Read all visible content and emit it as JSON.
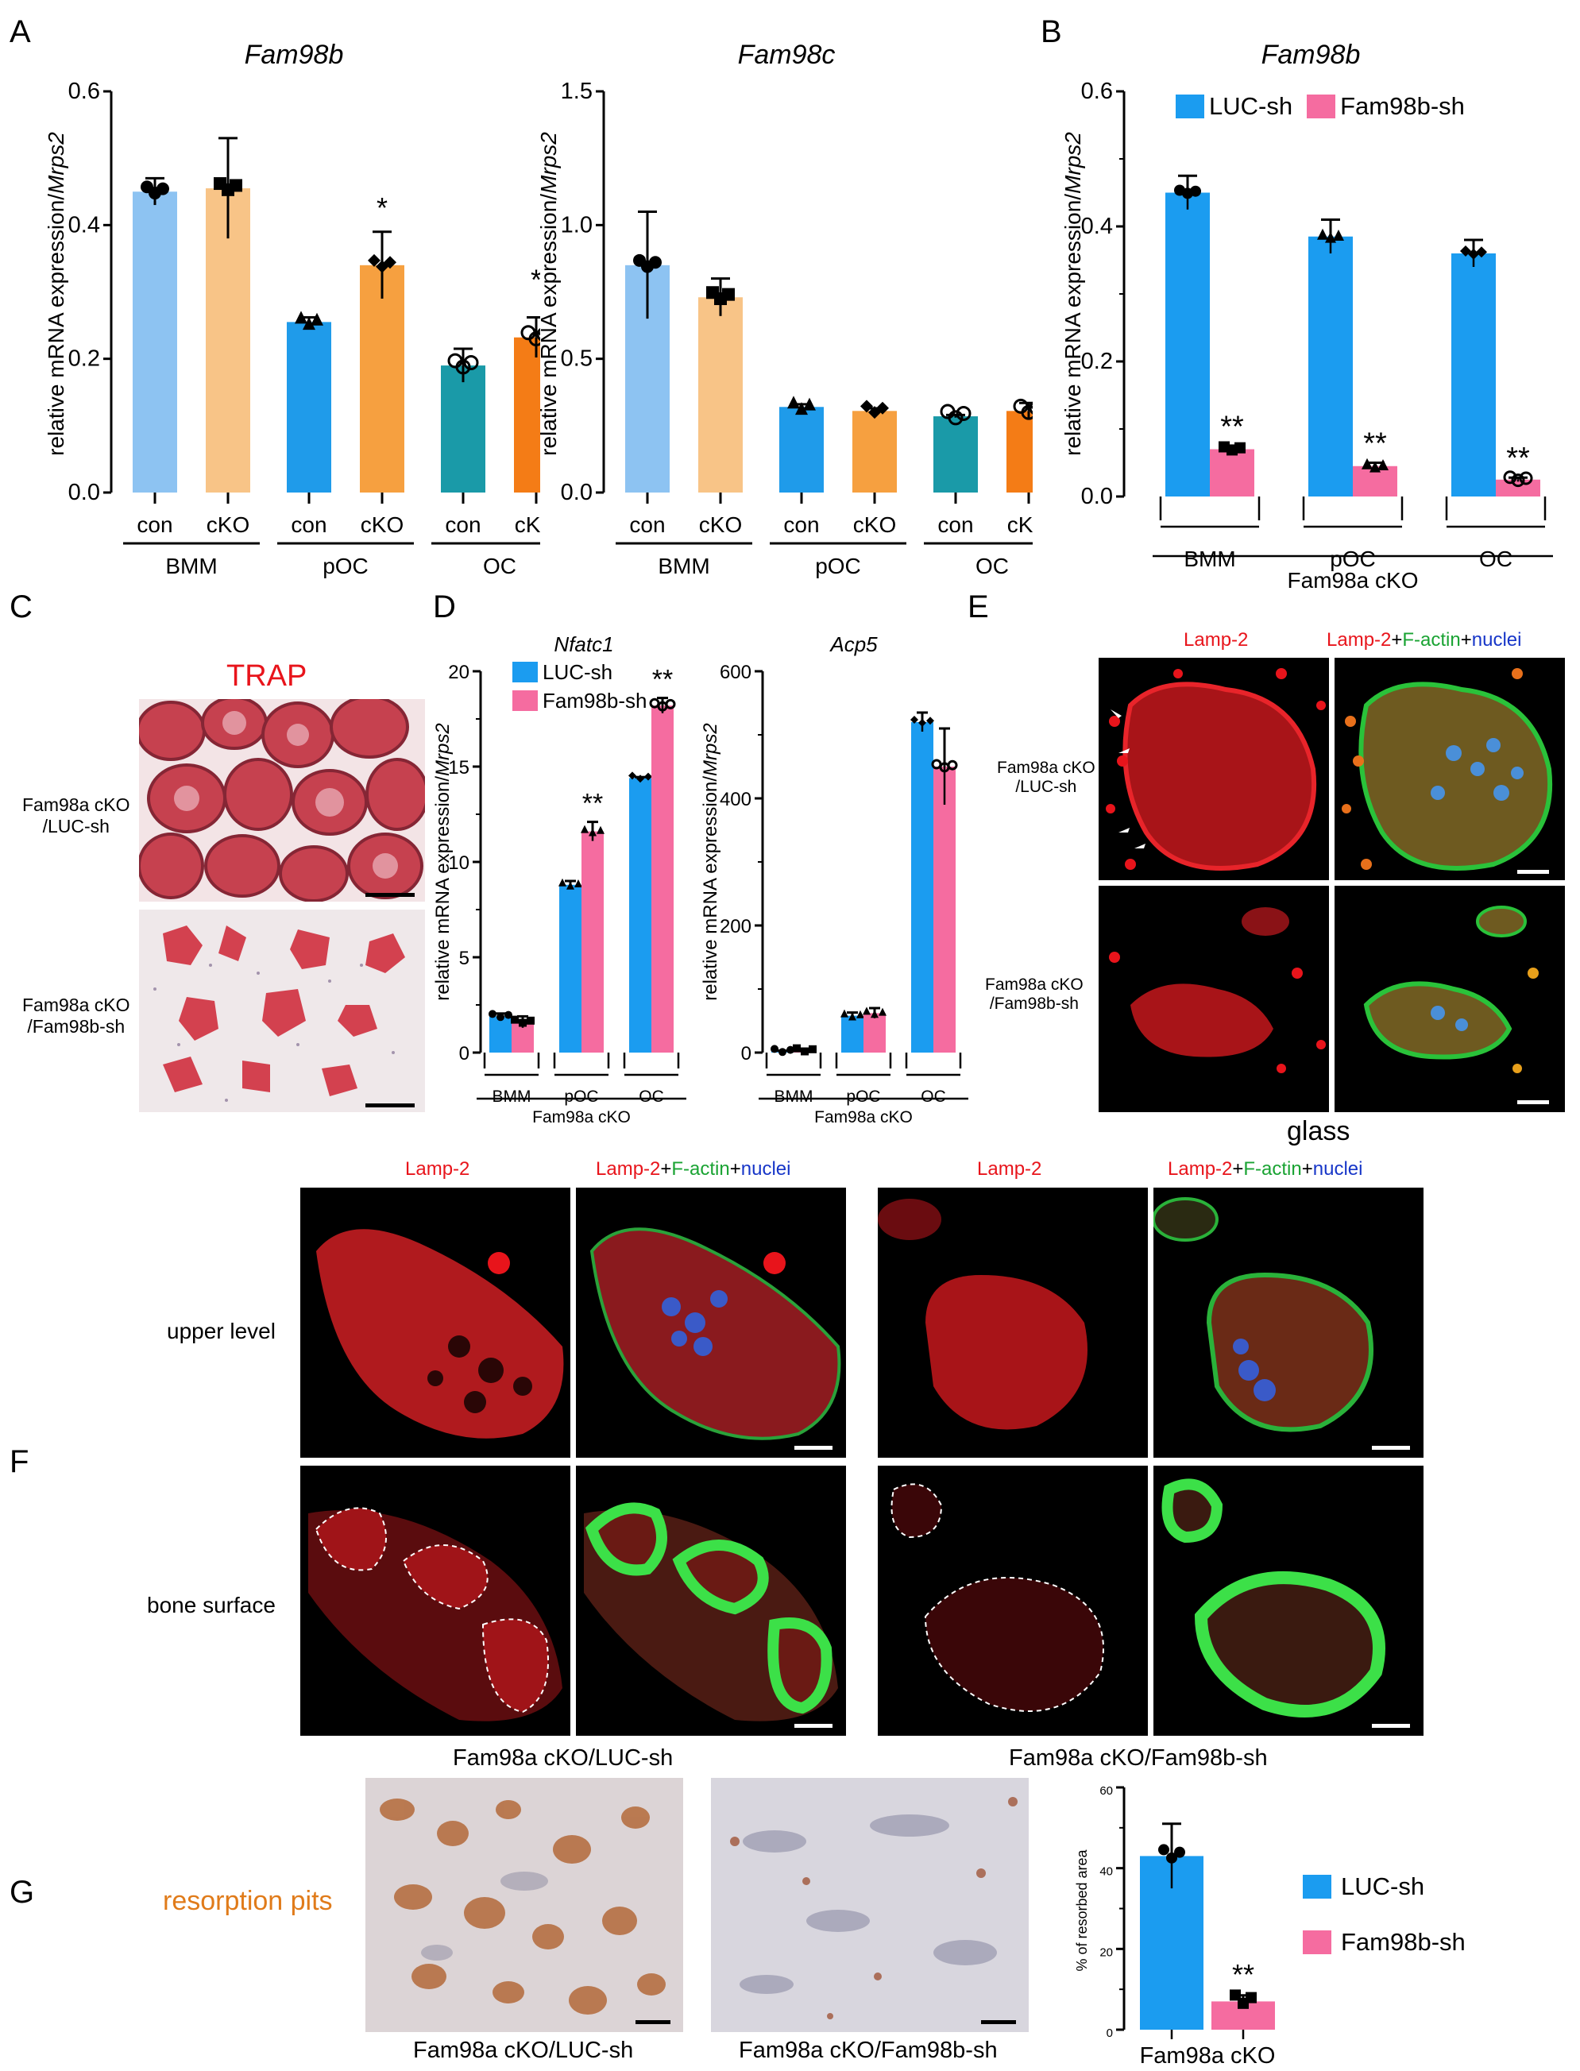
{
  "panel_letters": {
    "A": "A",
    "B": "B",
    "C": "C",
    "D": "D",
    "E": "E",
    "F": "F",
    "G": "G"
  },
  "colors": {
    "bmm_con": "#8DC3F2",
    "bmm_cko": "#F8C487",
    "poc_con": "#1F9BEA",
    "poc_cko": "#F6A040",
    "oc_con": "#1A9AA8",
    "oc_cko": "#F47C16",
    "luc": "#1B9CF0",
    "fam98b": "#F56CA0",
    "lamp": "#E8141B",
    "factin": "#1AA333",
    "nuclei": "#1736C8",
    "pits": "#E07B1A"
  },
  "chart_data": [
    {
      "id": "A1",
      "type": "bar",
      "title": "Fam98b",
      "ylabel": "relative mRNA expression/Mrps2",
      "ylim": [
        0,
        0.6
      ],
      "yticks": [
        "0.0",
        "0.2",
        "0.4",
        "0.6"
      ],
      "categories": [
        "con",
        "cKO",
        "con",
        "cKO",
        "con",
        "cKO"
      ],
      "groups": [
        "BMM",
        "pOC",
        "OC"
      ],
      "values": [
        0.45,
        0.455,
        0.255,
        0.34,
        0.19,
        0.232
      ],
      "errors": [
        0.02,
        0.075,
        0.007,
        0.05,
        0.025,
        0.03
      ],
      "annotations": [
        "",
        "",
        "",
        "*",
        "",
        "*"
      ]
    },
    {
      "id": "A2",
      "type": "bar",
      "title": "Fam98c",
      "ylabel": "relative mRNA expression/Mrps2",
      "ylim": [
        0,
        1.5
      ],
      "yticks": [
        "0.0",
        "0.5",
        "1.0",
        "1.5"
      ],
      "categories": [
        "con",
        "cKO",
        "con",
        "cKO",
        "con",
        "cKO"
      ],
      "groups": [
        "BMM",
        "pOC",
        "OC"
      ],
      "values": [
        0.85,
        0.73,
        0.32,
        0.305,
        0.285,
        0.305
      ],
      "errors": [
        0.2,
        0.07,
        0.01,
        0.01,
        0.005,
        0.03
      ],
      "annotations": [
        "",
        "",
        "",
        "",
        "",
        ""
      ]
    },
    {
      "id": "B",
      "type": "bar",
      "title": "Fam98b",
      "ylabel": "relative mRNA expression/Mrps2",
      "ylim": [
        0,
        0.6
      ],
      "yticks": [
        "0.0",
        "0.2",
        "0.4",
        "0.6"
      ],
      "groups": [
        "BMM",
        "pOC",
        "OC"
      ],
      "footer": "Fam98a cKO",
      "series": [
        {
          "name": "LUC-sh",
          "values": [
            0.45,
            0.385,
            0.36
          ],
          "errors": [
            0.025,
            0.025,
            0.02
          ]
        },
        {
          "name": "Fam98b-sh",
          "values": [
            0.07,
            0.045,
            0.025
          ],
          "errors": [
            0.005,
            0.005,
            0.003
          ]
        }
      ],
      "annotations": [
        "**",
        "**",
        "**"
      ]
    },
    {
      "id": "D1",
      "type": "bar",
      "title": "Nfatc1",
      "ylabel": "relative mRNA expression/Mrps2",
      "ylim": [
        0,
        20
      ],
      "yticks": [
        "0",
        "5",
        "10",
        "15",
        "20"
      ],
      "groups": [
        "BMM",
        "pOC",
        "OC"
      ],
      "footer": "Fam98a cKO",
      "series": [
        {
          "name": "LUC-sh",
          "values": [
            1.9,
            8.8,
            14.4
          ],
          "errors": [
            0.15,
            0.2,
            0.05
          ]
        },
        {
          "name": "Fam98b-sh",
          "values": [
            1.6,
            11.6,
            18.2
          ],
          "errors": [
            0.3,
            0.5,
            0.4
          ]
        }
      ],
      "annotations": [
        "",
        "**",
        "**"
      ]
    },
    {
      "id": "D2",
      "type": "bar",
      "title": "Acp5",
      "ylabel": "relative mRNA expression/Mrps2",
      "ylim": [
        0,
        600
      ],
      "yticks": [
        "0",
        "200",
        "400",
        "600"
      ],
      "groups": [
        "BMM",
        "pOC",
        "OC"
      ],
      "footer": "Fam98a cKO",
      "series": [
        {
          "name": "LUC-sh",
          "values": [
            2,
            58,
            520
          ],
          "errors": [
            1,
            5,
            15
          ]
        },
        {
          "name": "Fam98b-sh",
          "values": [
            3,
            62,
            450
          ],
          "errors": [
            1,
            8,
            60
          ]
        }
      ],
      "annotations": [
        "",
        "",
        ""
      ]
    },
    {
      "id": "G",
      "type": "bar",
      "title": "",
      "ylabel": "% of resorbed area",
      "ylim": [
        0,
        60
      ],
      "yticks": [
        "0",
        "20",
        "40",
        "60"
      ],
      "categories": [
        "LUC-sh",
        "Fam98b-sh"
      ],
      "footer": "Fam98a cKO",
      "values": [
        43,
        7
      ],
      "errors": [
        8,
        1.5
      ],
      "annotations": [
        "",
        "**"
      ]
    }
  ],
  "legend_B": {
    "luc": "LUC-sh",
    "fam98b": "Fam98b-sh"
  },
  "legend_D": {
    "luc": "LUC-sh",
    "fam98b": "Fam98b-sh"
  },
  "legend_G": {
    "luc": "LUC-sh",
    "fam98b": "Fam98b-sh"
  },
  "panelC": {
    "title": "TRAP",
    "row1": "Fam98a cKO\n/LUC-sh",
    "row2": "Fam98a cKO\n/Fam98b-sh"
  },
  "panelE": {
    "col1": "Lamp-2",
    "col2_lamp": "Lamp-2",
    "plus": "+",
    "col2_factin": "F-actin",
    "col2_nuclei": "nuclei",
    "row1": "Fam98a cKO\n/LUC-sh",
    "row2": "Fam98a cKO\n/Fam98b-sh",
    "footer": "glass"
  },
  "panelF": {
    "col1": "Lamp-2",
    "col2_lamp": "Lamp-2",
    "plus": "+",
    "col2_factin": "F-actin",
    "col2_nuclei": "nuclei",
    "row1": "upper level",
    "row2": "bone surface",
    "foot_left": "Fam98a cKO/LUC-sh",
    "foot_right": "Fam98a cKO/Fam98b-sh"
  },
  "panelG": {
    "label": "resorption pits",
    "foot_left": "Fam98a cKO/LUC-sh",
    "foot_right": "Fam98a cKO/Fam98b-sh"
  }
}
